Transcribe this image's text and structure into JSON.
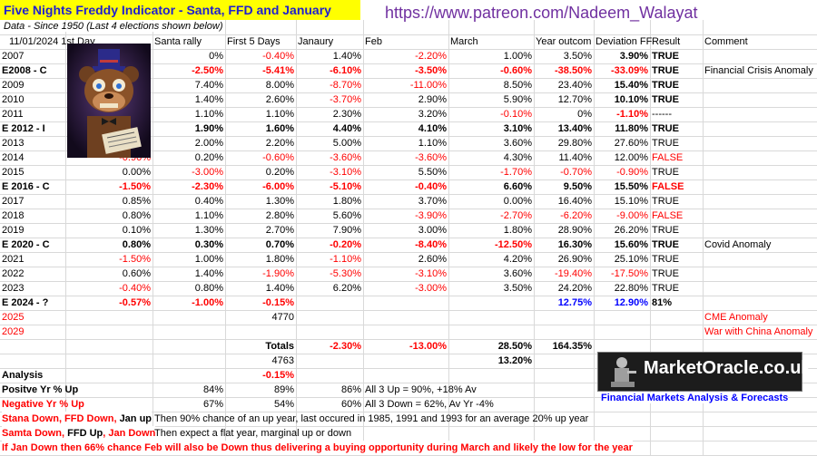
{
  "title": "Five Nights Freddy Indicator - Santa, FFD and January",
  "patreon_url": "https://www.patreon.com/Nadeem_Walayat",
  "subtitle": "Data - Since 1950 (Last 4 elections shown below)",
  "image_alt": "Five Nights Freddy character holding Election Year paper",
  "header": [
    "11/01/2024 1st Day",
    "Santa rally",
    "First 5 Days",
    "Janaury",
    "Feb",
    "March",
    "Year outcom",
    "Deviation FF",
    "Result",
    "Comment"
  ],
  "rows": [
    {
      "year": "2007",
      "c1": "",
      "santa": "0%",
      "ffd": "-0.40%",
      "jan": "1.40%",
      "feb": "-2.20%",
      "mar": "1.00%",
      "year_out": "3.50%",
      "dev": "3.90%",
      "result": "TRUE",
      "comment": ""
    },
    {
      "year": "E2008 - C",
      "c1": "",
      "santa": "-2.50%",
      "ffd": "-5.41%",
      "jan": "-6.10%",
      "feb": "-3.50%",
      "mar": "-0.60%",
      "year_out": "-38.50%",
      "dev": "-33.09%",
      "result": "TRUE",
      "comment": "Financial Crisis Anomaly"
    },
    {
      "year": "2009",
      "c1": "",
      "santa": "7.40%",
      "ffd": "8.00%",
      "jan": "-8.70%",
      "feb": "-11.00%",
      "mar": "8.50%",
      "year_out": "23.40%",
      "dev": "15.40%",
      "result": "TRUE",
      "comment": ""
    },
    {
      "year": "2010",
      "c1": "",
      "santa": "1.40%",
      "ffd": "2.60%",
      "jan": "-3.70%",
      "feb": "2.90%",
      "mar": "5.90%",
      "year_out": "12.70%",
      "dev": "10.10%",
      "result": "TRUE",
      "comment": ""
    },
    {
      "year": "2011",
      "c1": "",
      "santa": "1.10%",
      "ffd": "1.10%",
      "jan": "2.30%",
      "feb": "3.20%",
      "mar": "-0.10%",
      "year_out": "0%",
      "dev": "-1.10%",
      "result": "------",
      "comment": ""
    },
    {
      "year": "E 2012 - I",
      "c1": "",
      "santa": "1.90%",
      "ffd": "1.60%",
      "jan": "4.40%",
      "feb": "4.10%",
      "mar": "3.10%",
      "year_out": "13.40%",
      "dev": "11.80%",
      "result": "TRUE",
      "comment": ""
    },
    {
      "year": "2013",
      "c1": "",
      "santa": "2.00%",
      "ffd": "2.20%",
      "jan": "5.00%",
      "feb": "1.10%",
      "mar": "3.60%",
      "year_out": "29.80%",
      "dev": "27.60%",
      "result": "TRUE",
      "comment": ""
    },
    {
      "year": "2014",
      "c1": "-0.90%",
      "santa": "0.20%",
      "ffd": "-0.60%",
      "jan": "-3.60%",
      "feb": "-3.60%",
      "mar": "4.30%",
      "year_out": "11.40%",
      "dev": "12.00%",
      "result": "FALSE",
      "comment": ""
    },
    {
      "year": "2015",
      "c1": "0.00%",
      "santa": "-3.00%",
      "ffd": "0.20%",
      "jan": "-3.10%",
      "feb": "5.50%",
      "mar": "-1.70%",
      "year_out": "-0.70%",
      "dev": "-0.90%",
      "result": "TRUE",
      "comment": ""
    },
    {
      "year": "E 2016 - C",
      "c1": "-1.50%",
      "santa": "-2.30%",
      "ffd": "-6.00%",
      "jan": "-5.10%",
      "feb": "-0.40%",
      "mar": "6.60%",
      "year_out": "9.50%",
      "dev": "15.50%",
      "result": "FALSE",
      "comment": ""
    },
    {
      "year": "2017",
      "c1": "0.85%",
      "santa": "0.40%",
      "ffd": "1.30%",
      "jan": "1.80%",
      "feb": "3.70%",
      "mar": "0.00%",
      "year_out": "16.40%",
      "dev": "15.10%",
      "result": "TRUE",
      "comment": ""
    },
    {
      "year": "2018",
      "c1": "0.80%",
      "santa": "1.10%",
      "ffd": "2.80%",
      "jan": "5.60%",
      "feb": "-3.90%",
      "mar": "-2.70%",
      "year_out": "-6.20%",
      "dev": "-9.00%",
      "result": "FALSE",
      "comment": ""
    },
    {
      "year": "2019",
      "c1": "0.10%",
      "santa": "1.30%",
      "ffd": "2.70%",
      "jan": "7.90%",
      "feb": "3.00%",
      "mar": "1.80%",
      "year_out": "28.90%",
      "dev": "26.20%",
      "result": "TRUE",
      "comment": ""
    },
    {
      "year": "E 2020 - C",
      "c1": "0.80%",
      "santa": "0.30%",
      "ffd": "0.70%",
      "jan": "-0.20%",
      "feb": "-8.40%",
      "mar": "-12.50%",
      "year_out": "16.30%",
      "dev": "15.60%",
      "result": "TRUE",
      "comment": "Covid Anomaly"
    },
    {
      "year": "2021",
      "c1": "-1.50%",
      "santa": "1.00%",
      "ffd": "1.80%",
      "jan": "-1.10%",
      "feb": "2.60%",
      "mar": "4.20%",
      "year_out": "26.90%",
      "dev": "25.10%",
      "result": "TRUE",
      "comment": ""
    },
    {
      "year": "2022",
      "c1": "0.60%",
      "santa": "1.40%",
      "ffd": "-1.90%",
      "jan": "-5.30%",
      "feb": "-3.10%",
      "mar": "3.60%",
      "year_out": "-19.40%",
      "dev": "-17.50%",
      "result": "TRUE",
      "comment": ""
    },
    {
      "year": "2023",
      "c1": "-0.40%",
      "santa": "0.80%",
      "ffd": "1.40%",
      "jan": "6.20%",
      "feb": "-3.00%",
      "mar": "3.50%",
      "year_out": "24.20%",
      "dev": "22.80%",
      "result": "TRUE",
      "comment": ""
    },
    {
      "year": "E 2024 - ?",
      "c1": "-0.57%",
      "santa": "-1.00%",
      "ffd": "-0.15%",
      "jan": "",
      "feb": "",
      "mar": "",
      "year_out": "12.75%",
      "dev": "12.90%",
      "result": "81%",
      "comment": ""
    },
    {
      "year": "2025",
      "c1": "",
      "santa": "",
      "ffd": "4770",
      "jan": "",
      "feb": "",
      "mar": "",
      "year_out": "",
      "dev": "",
      "result": "",
      "comment": "CME Anomaly"
    },
    {
      "year": "2029",
      "c1": "",
      "santa": "",
      "ffd": "",
      "jan": "",
      "feb": "",
      "mar": "",
      "year_out": "",
      "dev": "",
      "result": "",
      "comment": "War with China Anomaly"
    }
  ],
  "totals": {
    "label": "Totals",
    "jan": "-2.30%",
    "feb": "-13.00%",
    "mar": "28.50%",
    "year_out": "164.35%"
  },
  "row_4763": {
    "ffd": "4763",
    "mar": "13.20%"
  },
  "analysis": {
    "label": "Analysis",
    "ffd": "-0.15%"
  },
  "positive": {
    "label": "Positve  Yr % Up",
    "santa": "84%",
    "ffd": "89%",
    "jan": "86%",
    "note": "All 3 Up = 90%, +18% Av"
  },
  "negative": {
    "label": "Negative Yr % Up",
    "santa": "67%",
    "ffd": "54%",
    "jan": "60%",
    "note": "All 3 Down = 62%,  Av Yr -4%"
  },
  "notes": [
    {
      "label": "Stana Down, FFD Down, Jan up",
      "text": "Then 90% chance of an up year, last occured in 1985, 1991 and 1993 for an average 20% up year"
    },
    {
      "label": "Samta Down, FFD Up, Jan Down",
      "text": "Then expect a flat year, marginal up or down"
    },
    {
      "label": "If Jan Down then 66%  chance Feb will also be Down thus delivering a buying opportunity during March and likely the low for the year",
      "text": ""
    }
  ],
  "logo": {
    "name": "MarketOracle.co.uk",
    "tagline": "Financial Markets Analysis & Forecasts"
  }
}
